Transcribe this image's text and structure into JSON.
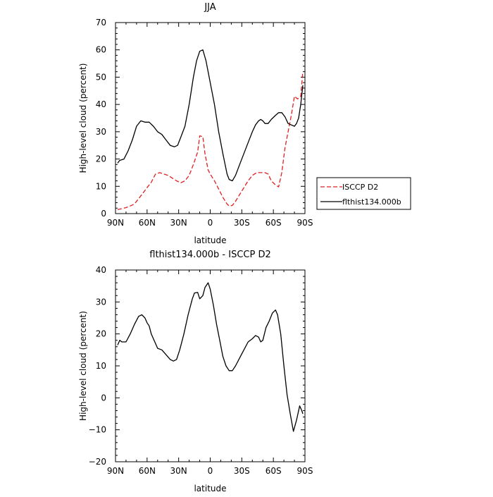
{
  "chart_data": [
    {
      "type": "line",
      "title": "JJA",
      "xlabel": "latitude",
      "ylabel": "High-level cloud (percent)",
      "xlim": [
        90,
        -90
      ],
      "ylim": [
        0,
        70
      ],
      "x_ticks": [
        90,
        60,
        30,
        0,
        -30,
        -60,
        -90
      ],
      "x_tick_labels": [
        "90N",
        "60N",
        "30N",
        "0",
        "30S",
        "60S",
        "90S"
      ],
      "y_ticks": [
        0,
        10,
        20,
        30,
        40,
        50,
        60,
        70
      ],
      "y_tick_labels": [
        "0",
        "10",
        "20",
        "30",
        "40",
        "50",
        "60",
        "70"
      ],
      "legend_position": "outside-right",
      "series": [
        {
          "name": "ISCCP D2",
          "color": "#e02020",
          "dash": "dashed",
          "points": [
            [
              88,
              1.5
            ],
            [
              84,
              1.8
            ],
            [
              80,
              2.2
            ],
            [
              76,
              2.8
            ],
            [
              72,
              3.5
            ],
            [
              68,
              5.5
            ],
            [
              64,
              7.5
            ],
            [
              60,
              9.5
            ],
            [
              56,
              11.5
            ],
            [
              52,
              14.5
            ],
            [
              48,
              15
            ],
            [
              44,
              14.5
            ],
            [
              40,
              14
            ],
            [
              36,
              13
            ],
            [
              32,
              12
            ],
            [
              28,
              11.3
            ],
            [
              24,
              12
            ],
            [
              20,
              14
            ],
            [
              16,
              18
            ],
            [
              12,
              22.5
            ],
            [
              10,
              28.5
            ],
            [
              7,
              28.2
            ],
            [
              5,
              22
            ],
            [
              2,
              16
            ],
            [
              0,
              14.5
            ],
            [
              -4,
              12
            ],
            [
              -8,
              9
            ],
            [
              -12,
              6
            ],
            [
              -16,
              3.5
            ],
            [
              -18,
              2.8
            ],
            [
              -21,
              3
            ],
            [
              -24,
              4.5
            ],
            [
              -28,
              7
            ],
            [
              -32,
              9.5
            ],
            [
              -36,
              12
            ],
            [
              -40,
              14
            ],
            [
              -44,
              15
            ],
            [
              -48,
              15
            ],
            [
              -52,
              15
            ],
            [
              -55,
              14.5
            ],
            [
              -58,
              12
            ],
            [
              -62,
              10.5
            ],
            [
              -65,
              9.8
            ],
            [
              -68,
              15
            ],
            [
              -71,
              24
            ],
            [
              -74,
              30
            ],
            [
              -77,
              36
            ],
            [
              -80,
              43
            ],
            [
              -83,
              42
            ],
            [
              -86,
              43
            ],
            [
              -88,
              52
            ]
          ]
        },
        {
          "name": "flthist134.000b",
          "color": "#000000",
          "dash": "solid",
          "points": [
            [
              88,
              18.5
            ],
            [
              86,
              19.5
            ],
            [
              82,
              20
            ],
            [
              78,
              23
            ],
            [
              74,
              27
            ],
            [
              70,
              32
            ],
            [
              66,
              34
            ],
            [
              62,
              33.5
            ],
            [
              58,
              33.5
            ],
            [
              54,
              32
            ],
            [
              50,
              30
            ],
            [
              46,
              29
            ],
            [
              42,
              27
            ],
            [
              38,
              25
            ],
            [
              34,
              24.5
            ],
            [
              31,
              25
            ],
            [
              28,
              28
            ],
            [
              24,
              32
            ],
            [
              20,
              40
            ],
            [
              16,
              50
            ],
            [
              13,
              56
            ],
            [
              10,
              59.5
            ],
            [
              7,
              60
            ],
            [
              4,
              56
            ],
            [
              0,
              48
            ],
            [
              -4,
              40
            ],
            [
              -8,
              30
            ],
            [
              -12,
              22
            ],
            [
              -16,
              14.5
            ],
            [
              -18,
              12.5
            ],
            [
              -21,
              12
            ],
            [
              -24,
              14
            ],
            [
              -28,
              18
            ],
            [
              -32,
              22
            ],
            [
              -36,
              26
            ],
            [
              -40,
              30
            ],
            [
              -43,
              32.5
            ],
            [
              -46,
              34
            ],
            [
              -48,
              34.5
            ],
            [
              -50,
              34
            ],
            [
              -52,
              33
            ],
            [
              -55,
              33
            ],
            [
              -58,
              34.5
            ],
            [
              -62,
              36
            ],
            [
              -65,
              37
            ],
            [
              -68,
              37
            ],
            [
              -71,
              35.5
            ],
            [
              -74,
              33
            ],
            [
              -77,
              32.5
            ],
            [
              -80,
              32
            ],
            [
              -82,
              33
            ],
            [
              -84,
              35
            ],
            [
              -86,
              40
            ],
            [
              -88,
              47
            ]
          ]
        }
      ]
    },
    {
      "type": "line",
      "title": "flthist134.000b - ISCCP D2",
      "xlabel": "latitude",
      "ylabel": "High-level cloud (percent)",
      "xlim": [
        90,
        -90
      ],
      "ylim": [
        -20,
        40
      ],
      "x_ticks": [
        90,
        60,
        30,
        0,
        -30,
        -60,
        -90
      ],
      "x_tick_labels": [
        "90N",
        "60N",
        "30N",
        "0",
        "30S",
        "60S",
        "90S"
      ],
      "y_ticks": [
        -20,
        -10,
        0,
        10,
        20,
        30,
        40
      ],
      "y_tick_labels": [
        "−20",
        "−10",
        "0",
        "10",
        "20",
        "30",
        "40"
      ],
      "series": [
        {
          "color": "#000000",
          "dash": "solid",
          "points": [
            [
              88,
              16.5
            ],
            [
              86,
              18
            ],
            [
              84,
              17.5
            ],
            [
              80,
              17.5
            ],
            [
              76,
              20
            ],
            [
              72,
              23
            ],
            [
              68,
              25.5
            ],
            [
              65,
              26
            ],
            [
              62,
              25
            ],
            [
              60,
              23.5
            ],
            [
              58,
              22.5
            ],
            [
              56,
              20
            ],
            [
              52,
              17
            ],
            [
              50,
              15.5
            ],
            [
              46,
              15
            ],
            [
              42,
              13.5
            ],
            [
              38,
              12
            ],
            [
              35,
              11.5
            ],
            [
              32,
              12
            ],
            [
              29,
              15
            ],
            [
              25,
              20
            ],
            [
              21,
              26
            ],
            [
              17,
              31
            ],
            [
              15,
              32.8
            ],
            [
              12,
              33
            ],
            [
              10,
              31
            ],
            [
              7,
              32
            ],
            [
              5,
              34.5
            ],
            [
              2,
              36
            ],
            [
              0,
              34
            ],
            [
              -3,
              29
            ],
            [
              -6,
              23
            ],
            [
              -9,
              18
            ],
            [
              -12,
              13
            ],
            [
              -15,
              10
            ],
            [
              -18,
              8.5
            ],
            [
              -21,
              8.5
            ],
            [
              -24,
              10
            ],
            [
              -28,
              12.5
            ],
            [
              -32,
              15
            ],
            [
              -36,
              17.5
            ],
            [
              -40,
              18.5
            ],
            [
              -43,
              19.5
            ],
            [
              -46,
              19
            ],
            [
              -48,
              17.5
            ],
            [
              -50,
              18
            ],
            [
              -53,
              22
            ],
            [
              -56,
              24
            ],
            [
              -59,
              26.5
            ],
            [
              -62,
              27.5
            ],
            [
              -64,
              26
            ],
            [
              -67,
              20
            ],
            [
              -70,
              10
            ],
            [
              -73,
              1
            ],
            [
              -76,
              -5
            ],
            [
              -79,
              -10.5
            ],
            [
              -82,
              -7
            ],
            [
              -85,
              -2.5
            ],
            [
              -87,
              -4
            ],
            [
              -88,
              -5
            ]
          ]
        }
      ]
    }
  ]
}
